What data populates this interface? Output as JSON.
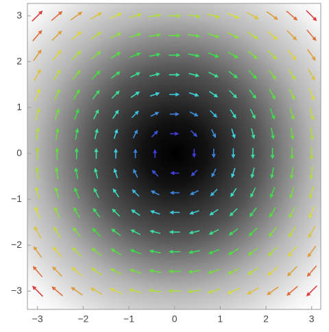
{
  "chart_data": {
    "type": "vector",
    "x": [
      -3,
      -2.571,
      -2.143,
      -1.714,
      -1.286,
      -0.857,
      -0.429,
      0,
      0.429,
      0.857,
      1.286,
      1.714,
      2.143,
      2.571,
      3
    ],
    "y": [
      -3,
      -2.571,
      -2.143,
      -1.714,
      -1.286,
      -0.857,
      -0.429,
      0,
      0.429,
      0.857,
      1.286,
      1.714,
      2.143,
      2.571,
      3
    ],
    "u": [
      [
        -3,
        -3,
        -3,
        -3,
        -3,
        -3,
        -3,
        -3,
        -3,
        -3,
        -3,
        -3,
        -3,
        -3,
        -3
      ],
      [
        -2.571,
        -2.571,
        -2.571,
        -2.571,
        -2.571,
        -2.571,
        -2.571,
        -2.571,
        -2.571,
        -2.571,
        -2.571,
        -2.571,
        -2.571,
        -2.571,
        -2.571
      ],
      [
        -2.143,
        -2.143,
        -2.143,
        -2.143,
        -2.143,
        -2.143,
        -2.143,
        -2.143,
        -2.143,
        -2.143,
        -2.143,
        -2.143,
        -2.143,
        -2.143,
        -2.143
      ],
      [
        -1.714,
        -1.714,
        -1.714,
        -1.714,
        -1.714,
        -1.714,
        -1.714,
        -1.714,
        -1.714,
        -1.714,
        -1.714,
        -1.714,
        -1.714,
        -1.714,
        -1.714
      ],
      [
        -1.286,
        -1.286,
        -1.286,
        -1.286,
        -1.286,
        -1.286,
        -1.286,
        -1.286,
        -1.286,
        -1.286,
        -1.286,
        -1.286,
        -1.286,
        -1.286,
        -1.286
      ],
      [
        -0.857,
        -0.857,
        -0.857,
        -0.857,
        -0.857,
        -0.857,
        -0.857,
        -0.857,
        -0.857,
        -0.857,
        -0.857,
        -0.857,
        -0.857,
        -0.857,
        -0.857
      ],
      [
        -0.429,
        -0.429,
        -0.429,
        -0.429,
        -0.429,
        -0.429,
        -0.429,
        -0.429,
        -0.429,
        -0.429,
        -0.429,
        -0.429,
        -0.429,
        -0.429,
        -0.429
      ],
      [
        0,
        0,
        0,
        0,
        0,
        0,
        0,
        0,
        0,
        0,
        0,
        0,
        0,
        0,
        0
      ],
      [
        0.429,
        0.429,
        0.429,
        0.429,
        0.429,
        0.429,
        0.429,
        0.429,
        0.429,
        0.429,
        0.429,
        0.429,
        0.429,
        0.429,
        0.429
      ],
      [
        0.857,
        0.857,
        0.857,
        0.857,
        0.857,
        0.857,
        0.857,
        0.857,
        0.857,
        0.857,
        0.857,
        0.857,
        0.857,
        0.857,
        0.857
      ],
      [
        1.286,
        1.286,
        1.286,
        1.286,
        1.286,
        1.286,
        1.286,
        1.286,
        1.286,
        1.286,
        1.286,
        1.286,
        1.286,
        1.286,
        1.286
      ],
      [
        1.714,
        1.714,
        1.714,
        1.714,
        1.714,
        1.714,
        1.714,
        1.714,
        1.714,
        1.714,
        1.714,
        1.714,
        1.714,
        1.714,
        1.714
      ],
      [
        2.143,
        2.143,
        2.143,
        2.143,
        2.143,
        2.143,
        2.143,
        2.143,
        2.143,
        2.143,
        2.143,
        2.143,
        2.143,
        2.143,
        2.143
      ],
      [
        2.571,
        2.571,
        2.571,
        2.571,
        2.571,
        2.571,
        2.571,
        2.571,
        2.571,
        2.571,
        2.571,
        2.571,
        2.571,
        2.571,
        2.571
      ],
      [
        3,
        3,
        3,
        3,
        3,
        3,
        3,
        3,
        3,
        3,
        3,
        3,
        3,
        3,
        3
      ]
    ],
    "v": [
      [
        3,
        2.571,
        2.143,
        1.714,
        1.286,
        0.857,
        0.429,
        0,
        -0.429,
        -0.857,
        -1.286,
        -1.714,
        -2.143,
        -2.571,
        -3
      ],
      [
        3,
        2.571,
        2.143,
        1.714,
        1.286,
        0.857,
        0.429,
        0,
        -0.429,
        -0.857,
        -1.286,
        -1.714,
        -2.143,
        -2.571,
        -3
      ],
      [
        3,
        2.571,
        2.143,
        1.714,
        1.286,
        0.857,
        0.429,
        0,
        -0.429,
        -0.857,
        -1.286,
        -1.714,
        -2.143,
        -2.571,
        -3
      ],
      [
        3,
        2.571,
        2.143,
        1.714,
        1.286,
        0.857,
        0.429,
        0,
        -0.429,
        -0.857,
        -1.286,
        -1.714,
        -2.143,
        -2.571,
        -3
      ],
      [
        3,
        2.571,
        2.143,
        1.714,
        1.286,
        0.857,
        0.429,
        0,
        -0.429,
        -0.857,
        -1.286,
        -1.714,
        -2.143,
        -2.571,
        -3
      ],
      [
        3,
        2.571,
        2.143,
        1.714,
        1.286,
        0.857,
        0.429,
        0,
        -0.429,
        -0.857,
        -1.286,
        -1.714,
        -2.143,
        -2.571,
        -3
      ],
      [
        3,
        2.571,
        2.143,
        1.714,
        1.286,
        0.857,
        0.429,
        0,
        -0.429,
        -0.857,
        -1.286,
        -1.714,
        -2.143,
        -2.571,
        -3
      ],
      [
        3,
        2.571,
        2.143,
        1.714,
        1.286,
        0.857,
        0.429,
        0,
        -0.429,
        -0.857,
        -1.286,
        -1.714,
        -2.143,
        -2.571,
        -3
      ],
      [
        3,
        2.571,
        2.143,
        1.714,
        1.286,
        0.857,
        0.429,
        0,
        -0.429,
        -0.857,
        -1.286,
        -1.714,
        -2.143,
        -2.571,
        -3
      ],
      [
        3,
        2.571,
        2.143,
        1.714,
        1.286,
        0.857,
        0.429,
        0,
        -0.429,
        -0.857,
        -1.286,
        -1.714,
        -2.143,
        -2.571,
        -3
      ],
      [
        3,
        2.571,
        2.143,
        1.714,
        1.286,
        0.857,
        0.429,
        0,
        -0.429,
        -0.857,
        -1.286,
        -1.714,
        -2.143,
        -2.571,
        -3
      ],
      [
        3,
        2.571,
        2.143,
        1.714,
        1.286,
        0.857,
        0.429,
        0,
        -0.429,
        -0.857,
        -1.286,
        -1.714,
        -2.143,
        -2.571,
        -3
      ],
      [
        3,
        2.571,
        2.143,
        1.714,
        1.286,
        0.857,
        0.429,
        0,
        -0.429,
        -0.857,
        -1.286,
        -1.714,
        -2.143,
        -2.571,
        -3
      ],
      [
        3,
        2.571,
        2.143,
        1.714,
        1.286,
        0.857,
        0.429,
        0,
        -0.429,
        -0.857,
        -1.286,
        -1.714,
        -2.143,
        -2.571,
        -3
      ],
      [
        3,
        2.571,
        2.143,
        1.714,
        1.286,
        0.857,
        0.429,
        0,
        -0.429,
        -0.857,
        -1.286,
        -1.714,
        -2.143,
        -2.571,
        -3
      ]
    ],
    "xlim": [
      -3.22,
      3.2
    ],
    "ylim": [
      -3.4,
      3.27
    ],
    "xticks": [
      {
        "value": -3,
        "label": "−3"
      },
      {
        "value": -2,
        "label": "−2"
      },
      {
        "value": -1,
        "label": "−1"
      },
      0,
      1,
      2,
      3
    ],
    "yticks": [
      {
        "value": -3,
        "label": "−3"
      },
      {
        "value": -2,
        "label": "−2"
      },
      {
        "value": -1,
        "label": "−1"
      },
      0,
      1,
      2,
      3
    ]
  }
}
